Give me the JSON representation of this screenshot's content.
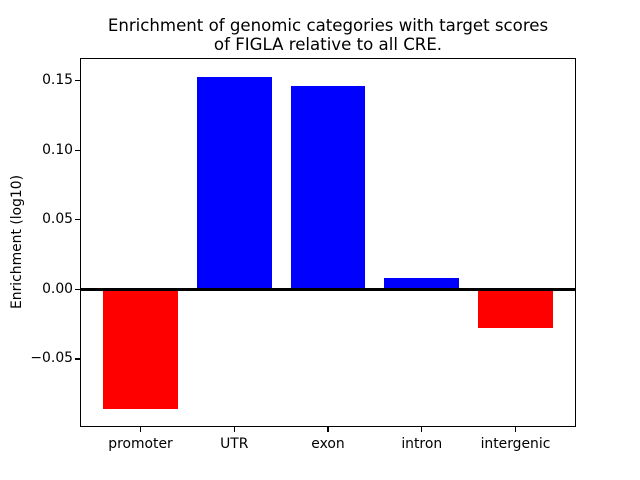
{
  "chart_data": {
    "type": "bar",
    "title": "Enrichment of genomic categories with target scores\nof FIGLA relative to all CRE.",
    "xlabel": "",
    "ylabel": "Enrichment (log10)",
    "categories": [
      "promoter",
      "UTR",
      "exon",
      "intron",
      "intergenic"
    ],
    "values": [
      -0.086,
      0.153,
      0.146,
      0.008,
      -0.028
    ],
    "bar_colors": [
      "#ff0000",
      "#0000ff",
      "#0000ff",
      "#0000ff",
      "#ff0000"
    ],
    "positive_color": "#0000ff",
    "negative_color": "#ff0000",
    "bar_width": 0.8,
    "baseline": 0,
    "ylim": [
      -0.0983,
      0.1656
    ],
    "xlim": [
      -0.635,
      4.635
    ],
    "yticks": [
      {
        "value": -0.05,
        "label": "−0.05"
      },
      {
        "value": 0.0,
        "label": "0.00"
      },
      {
        "value": 0.05,
        "label": "0.05"
      },
      {
        "value": 0.1,
        "label": "0.10"
      },
      {
        "value": 0.15,
        "label": "0.15"
      }
    ],
    "grid": false,
    "legend": null,
    "axis_color": "#000000",
    "text_color": "#000000",
    "background_color": "#ffffff"
  }
}
